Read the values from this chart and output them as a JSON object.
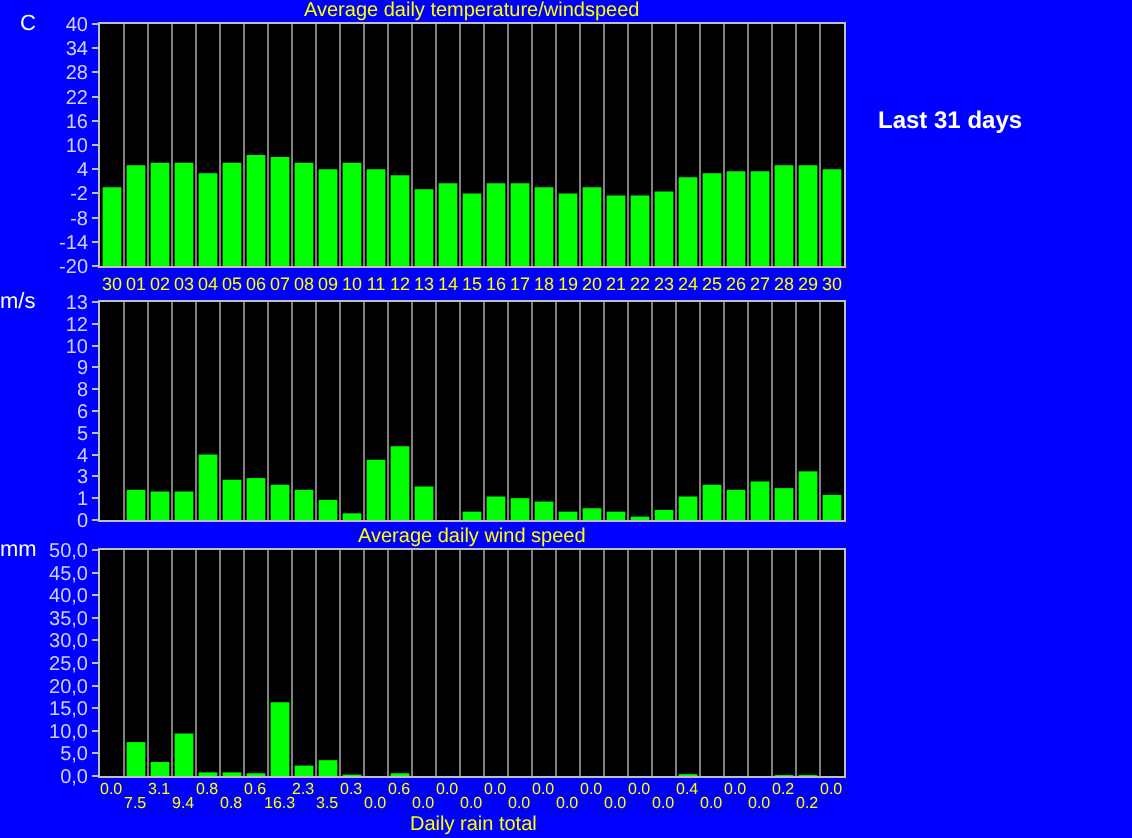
{
  "chart_data": [
    {
      "type": "bar",
      "title": "Average daily temperature/windspeed",
      "ylabel": "C",
      "categories": [
        "30",
        "01",
        "02",
        "03",
        "04",
        "05",
        "06",
        "07",
        "08",
        "09",
        "10",
        "11",
        "12",
        "13",
        "14",
        "15",
        "16",
        "17",
        "18",
        "19",
        "20",
        "21",
        "22",
        "23",
        "24",
        "25",
        "26",
        "27",
        "28",
        "29",
        "30"
      ],
      "base": [
        -20,
        -20,
        -20,
        -20,
        -20,
        -20,
        -20,
        -20,
        -20,
        -20,
        -20,
        -20,
        -20,
        -20,
        -20,
        -20,
        -20,
        -20,
        -20,
        -20,
        -20,
        -20,
        -20,
        -20,
        -20,
        -20,
        -20,
        -20,
        -20,
        -20,
        -20
      ],
      "values": [
        19.5,
        25,
        25.6,
        25.6,
        23,
        25.6,
        27.5,
        27,
        25.6,
        24,
        25.6,
        24,
        22.5,
        19,
        20.5,
        18,
        20.5,
        20.5,
        19.5,
        18,
        19.5,
        17.5,
        17.5,
        18.5,
        22,
        23,
        23.5,
        23.5,
        25,
        25,
        24
      ],
      "color": "#00ff00",
      "ylim": [
        -20,
        40
      ],
      "yticks": [
        -20,
        -14,
        -8,
        -2,
        4,
        10,
        16,
        22,
        28,
        34,
        40
      ],
      "grid": "x",
      "annotations": [
        "Last 31 days"
      ]
    },
    {
      "type": "bar",
      "ylabel": "m/s",
      "xlabel": "Average daily wind speed",
      "categories": [
        "30",
        "01",
        "02",
        "03",
        "04",
        "05",
        "06",
        "07",
        "08",
        "09",
        "10",
        "11",
        "12",
        "13",
        "14",
        "15",
        "16",
        "17",
        "18",
        "19",
        "20",
        "21",
        "22",
        "23",
        "24",
        "25",
        "26",
        "27",
        "28",
        "29",
        "30"
      ],
      "values": [
        0,
        1.8,
        1.7,
        1.7,
        3.9,
        2.4,
        2.5,
        2.1,
        1.8,
        1.2,
        0.4,
        3.6,
        4.4,
        2.0,
        0,
        0.5,
        1.4,
        1.3,
        1.1,
        0.5,
        0.7,
        0.5,
        0.2,
        0.6,
        1.4,
        2.1,
        1.8,
        2.3,
        1.9,
        2.9,
        1.5
      ],
      "color": "#00ff00",
      "ylim": [
        0,
        13
      ],
      "yticks": [
        0,
        {
          "value": 1.3,
          "label": "1"
        },
        {
          "value": 2.6,
          "label": "3"
        },
        {
          "value": 3.9,
          "label": "4"
        },
        {
          "value": 5.2,
          "label": "5"
        },
        {
          "value": 6.5,
          "label": "6"
        },
        {
          "value": 7.8,
          "label": "8"
        },
        {
          "value": 9.1,
          "label": "9"
        },
        {
          "value": 10.4,
          "label": "10"
        },
        {
          "value": 11.7,
          "label": "12"
        },
        13
      ],
      "grid": "x",
      "tick_labels": "y"
    },
    {
      "type": "bar",
      "ylabel": "mm",
      "xlabel": "Daily rain total",
      "categories": [
        "30",
        "01",
        "02",
        "03",
        "04",
        "05",
        "06",
        "07",
        "08",
        "09",
        "10",
        "11",
        "12",
        "13",
        "14",
        "15",
        "16",
        "17",
        "18",
        "19",
        "20",
        "21",
        "22",
        "23",
        "24",
        "25",
        "26",
        "27",
        "28",
        "29",
        "30"
      ],
      "values": [
        0,
        7.5,
        3.1,
        9.4,
        0.8,
        0.8,
        0.6,
        16.3,
        2.3,
        3.5,
        0.3,
        0,
        0.6,
        0,
        0,
        0,
        0,
        0,
        0,
        0,
        0,
        0,
        0,
        0,
        0.4,
        0,
        0,
        0,
        0.2,
        0.2,
        0
      ],
      "value_labels": [
        "0.0",
        "7.5",
        "3.1",
        "9.4",
        "0.8",
        "0.8",
        "0.6",
        "16.3",
        "2.3",
        "3.5",
        "0.3",
        "0.0",
        "0.6",
        "0.0",
        "0.0",
        "0.0",
        "0.0",
        "0.0",
        "0.0",
        "0.0",
        "0.0",
        "0.0",
        "0.0",
        "0.0",
        "0.4",
        "0.0",
        "0.0",
        "0.0",
        "0.2",
        "0.2",
        "0.0"
      ],
      "color": "#00ff00",
      "ylim": [
        0,
        50
      ],
      "yticks": [
        {
          "value": 0,
          "label": "0,0"
        },
        {
          "value": 5,
          "label": "5,0"
        },
        {
          "value": 10,
          "label": "10,0"
        },
        {
          "value": 15,
          "label": "15,0"
        },
        {
          "value": 20,
          "label": "20,0"
        },
        {
          "value": 25,
          "label": "25,0"
        },
        {
          "value": 30,
          "label": "30,0"
        },
        {
          "value": 35,
          "label": "35,0"
        },
        {
          "value": 40,
          "label": "40,0"
        },
        {
          "value": 45,
          "label": "45,0"
        },
        {
          "value": 50,
          "label": "50,0"
        }
      ],
      "grid": "x",
      "tick_labels": "y"
    }
  ]
}
